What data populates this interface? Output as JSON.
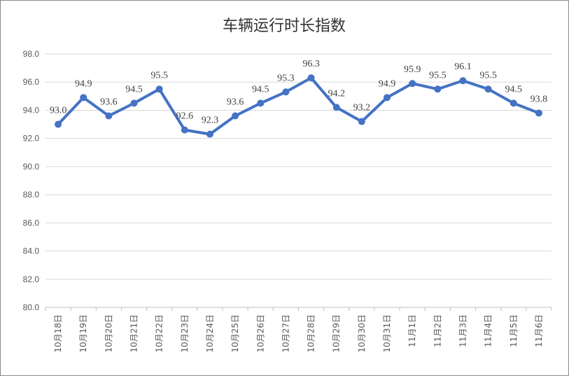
{
  "chart_data": {
    "type": "line",
    "title": "车辆运行时长指数",
    "categories": [
      "10月18日",
      "10月19日",
      "10月20日",
      "10月21日",
      "10月22日",
      "10月23日",
      "10月24日",
      "10月25日",
      "10月26日",
      "10月27日",
      "10月28日",
      "10月29日",
      "10月30日",
      "10月31日",
      "11月1日",
      "11月2日",
      "11月3日",
      "11月4日",
      "11月5日",
      "11月6日"
    ],
    "series": [
      {
        "values": [
          93.0,
          94.9,
          93.6,
          94.5,
          95.5,
          92.6,
          92.3,
          93.6,
          94.5,
          95.3,
          96.3,
          94.2,
          93.2,
          94.9,
          95.9,
          95.5,
          96.1,
          95.5,
          94.5,
          93.8
        ]
      }
    ],
    "data_labels": [
      "93.0",
      "94.9",
      "93.6",
      "94.5",
      "95.5",
      "92.6",
      "92.3",
      "93.6",
      "94.5",
      "95.3",
      "96.3",
      "94.2",
      "93.2",
      "94.9",
      "95.9",
      "95.5",
      "96.1",
      "95.5",
      "94.5",
      "93.8"
    ],
    "ylim": [
      80,
      98
    ],
    "yticks": [
      "80.0",
      "82.0",
      "84.0",
      "86.0",
      "88.0",
      "90.0",
      "92.0",
      "94.0",
      "96.0",
      "98.0"
    ],
    "grid": true,
    "legend": "none",
    "line_color": "#4472C4",
    "grid_color": "#D9D9D9"
  }
}
